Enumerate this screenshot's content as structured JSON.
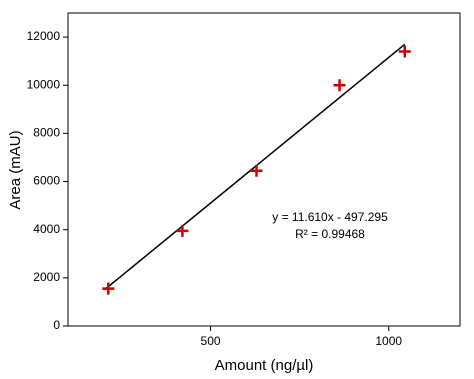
{
  "chart_data": {
    "type": "scatter",
    "x_label": "Amount (ng/µl)",
    "y_label": "Area (mAU)",
    "x": [
      213,
      421,
      629,
      862,
      1045
    ],
    "values": [
      1550,
      3950,
      6450,
      10000,
      11400
    ],
    "color": "#cc0000",
    "fit_line": {
      "x": [
        202,
        1045
      ],
      "values": [
        1500,
        11700
      ],
      "color": "#000000"
    },
    "annotations": [
      "y = 11.610x - 497.295",
      "R² = 0.99468"
    ],
    "xlim": [
      100,
      1200
    ],
    "xticks": [
      500,
      1000
    ],
    "ylim": [
      0,
      13000
    ],
    "yticks": [
      0,
      2000,
      4000,
      6000,
      8000,
      10000,
      12000
    ]
  }
}
